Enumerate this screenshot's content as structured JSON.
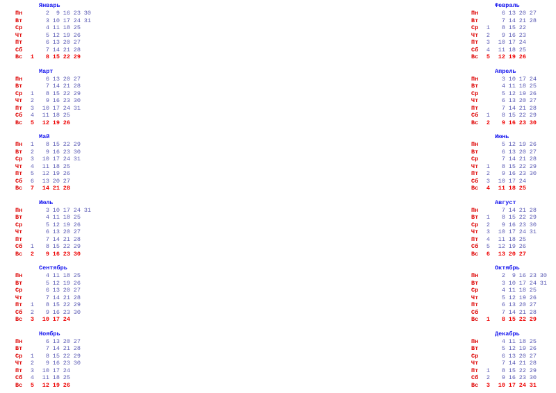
{
  "months": [
    {
      "name": "Январь",
      "rows": [
        {
          "day": "Пн",
          "dates": [
            null,
            2,
            9,
            16,
            23,
            30
          ]
        },
        {
          "day": "Вт",
          "dates": [
            null,
            3,
            10,
            17,
            24,
            31
          ]
        },
        {
          "day": "Ср",
          "dates": [
            null,
            4,
            11,
            18,
            25
          ]
        },
        {
          "day": "Чт",
          "dates": [
            null,
            5,
            12,
            19,
            26
          ]
        },
        {
          "day": "Пт",
          "dates": [
            null,
            6,
            13,
            20,
            27
          ]
        },
        {
          "day": "Сб",
          "dates": [
            null,
            7,
            14,
            21,
            28
          ]
        },
        {
          "day": "Вс",
          "dates": [
            1,
            8,
            15,
            22,
            29
          ]
        }
      ]
    },
    {
      "name": "Февраль",
      "rows": [
        {
          "day": "Пн",
          "dates": [
            null,
            6,
            13,
            20,
            27
          ]
        },
        {
          "day": "Вт",
          "dates": [
            null,
            7,
            14,
            21,
            28
          ]
        },
        {
          "day": "Ср",
          "dates": [
            1,
            8,
            15,
            22
          ]
        },
        {
          "day": "Чт",
          "dates": [
            2,
            9,
            16,
            23
          ]
        },
        {
          "day": "Пт",
          "dates": [
            3,
            10,
            17,
            24
          ]
        },
        {
          "day": "Сб",
          "dates": [
            4,
            11,
            18,
            25
          ]
        },
        {
          "day": "Вс",
          "dates": [
            5,
            12,
            19,
            26
          ]
        }
      ]
    },
    {
      "name": "Март",
      "rows": [
        {
          "day": "Пн",
          "dates": [
            null,
            6,
            13,
            20,
            27
          ]
        },
        {
          "day": "Вт",
          "dates": [
            null,
            7,
            14,
            21,
            28
          ]
        },
        {
          "day": "Ср",
          "dates": [
            1,
            8,
            15,
            22,
            29
          ]
        },
        {
          "day": "Чт",
          "dates": [
            2,
            9,
            16,
            23,
            30
          ]
        },
        {
          "day": "Пт",
          "dates": [
            3,
            10,
            17,
            24,
            31
          ]
        },
        {
          "day": "Сб",
          "dates": [
            4,
            11,
            18,
            25
          ]
        },
        {
          "day": "Вс",
          "dates": [
            5,
            12,
            19,
            26
          ]
        }
      ]
    },
    {
      "name": "Апрель",
      "rows": [
        {
          "day": "Пн",
          "dates": [
            null,
            3,
            10,
            17,
            24
          ]
        },
        {
          "day": "Вт",
          "dates": [
            null,
            4,
            11,
            18,
            25
          ]
        },
        {
          "day": "Ср",
          "dates": [
            null,
            5,
            12,
            19,
            26
          ]
        },
        {
          "day": "Чт",
          "dates": [
            null,
            6,
            13,
            20,
            27
          ]
        },
        {
          "day": "Пт",
          "dates": [
            null,
            7,
            14,
            21,
            28
          ]
        },
        {
          "day": "Сб",
          "dates": [
            1,
            8,
            15,
            22,
            29
          ]
        },
        {
          "day": "Вс",
          "dates": [
            2,
            9,
            16,
            23,
            30
          ]
        }
      ]
    },
    {
      "name": "Май",
      "rows": [
        {
          "day": "Пн",
          "dates": [
            1,
            8,
            15,
            22,
            29
          ]
        },
        {
          "day": "Вт",
          "dates": [
            2,
            9,
            16,
            23,
            30
          ]
        },
        {
          "day": "Ср",
          "dates": [
            3,
            10,
            17,
            24,
            31
          ]
        },
        {
          "day": "Чт",
          "dates": [
            4,
            11,
            18,
            25
          ]
        },
        {
          "day": "Пт",
          "dates": [
            5,
            12,
            19,
            26
          ]
        },
        {
          "day": "Сб",
          "dates": [
            6,
            13,
            20,
            27
          ]
        },
        {
          "day": "Вс",
          "dates": [
            7,
            14,
            21,
            28
          ]
        }
      ]
    },
    {
      "name": "Июнь",
      "rows": [
        {
          "day": "Пн",
          "dates": [
            null,
            5,
            12,
            19,
            26
          ]
        },
        {
          "day": "Вт",
          "dates": [
            null,
            6,
            13,
            20,
            27
          ]
        },
        {
          "day": "Ср",
          "dates": [
            null,
            7,
            14,
            21,
            28
          ]
        },
        {
          "day": "Чт",
          "dates": [
            1,
            8,
            15,
            22,
            29
          ]
        },
        {
          "day": "Пт",
          "dates": [
            2,
            9,
            16,
            23,
            30
          ]
        },
        {
          "day": "Сб",
          "dates": [
            3,
            10,
            17,
            24
          ]
        },
        {
          "day": "Вс",
          "dates": [
            4,
            11,
            18,
            25
          ]
        }
      ]
    },
    {
      "name": "Июль",
      "rows": [
        {
          "day": "Пн",
          "dates": [
            null,
            3,
            10,
            17,
            24,
            31
          ]
        },
        {
          "day": "Вт",
          "dates": [
            null,
            4,
            11,
            18,
            25
          ]
        },
        {
          "day": "Ср",
          "dates": [
            null,
            5,
            12,
            19,
            26
          ]
        },
        {
          "day": "Чт",
          "dates": [
            null,
            6,
            13,
            20,
            27
          ]
        },
        {
          "day": "Пт",
          "dates": [
            null,
            7,
            14,
            21,
            28
          ]
        },
        {
          "day": "Сб",
          "dates": [
            1,
            8,
            15,
            22,
            29
          ]
        },
        {
          "day": "Вс",
          "dates": [
            2,
            9,
            16,
            23,
            30
          ]
        }
      ]
    },
    {
      "name": "Август",
      "rows": [
        {
          "day": "Пн",
          "dates": [
            null,
            7,
            14,
            21,
            28
          ]
        },
        {
          "day": "Вт",
          "dates": [
            1,
            8,
            15,
            22,
            29
          ]
        },
        {
          "day": "Ср",
          "dates": [
            2,
            9,
            16,
            23,
            30
          ]
        },
        {
          "day": "Чт",
          "dates": [
            3,
            10,
            17,
            24,
            31
          ]
        },
        {
          "day": "Пт",
          "dates": [
            4,
            11,
            18,
            25
          ]
        },
        {
          "day": "Сб",
          "dates": [
            5,
            12,
            19,
            26
          ]
        },
        {
          "day": "Вс",
          "dates": [
            6,
            13,
            20,
            27
          ]
        }
      ]
    },
    {
      "name": "Сентябрь",
      "rows": [
        {
          "day": "Пн",
          "dates": [
            null,
            4,
            11,
            18,
            25
          ]
        },
        {
          "day": "Вт",
          "dates": [
            null,
            5,
            12,
            19,
            26
          ]
        },
        {
          "day": "Ср",
          "dates": [
            null,
            6,
            13,
            20,
            27
          ]
        },
        {
          "day": "Чт",
          "dates": [
            null,
            7,
            14,
            21,
            28
          ]
        },
        {
          "day": "Пт",
          "dates": [
            1,
            8,
            15,
            22,
            29
          ]
        },
        {
          "day": "Сб",
          "dates": [
            2,
            9,
            16,
            23,
            30
          ]
        },
        {
          "day": "Вс",
          "dates": [
            3,
            10,
            17,
            24
          ]
        }
      ]
    },
    {
      "name": "Октябрь",
      "rows": [
        {
          "day": "Пн",
          "dates": [
            null,
            2,
            9,
            16,
            23,
            30
          ]
        },
        {
          "day": "Вт",
          "dates": [
            null,
            3,
            10,
            17,
            24,
            31
          ]
        },
        {
          "day": "Ср",
          "dates": [
            null,
            4,
            11,
            18,
            25
          ]
        },
        {
          "day": "Чт",
          "dates": [
            null,
            5,
            12,
            19,
            26
          ]
        },
        {
          "day": "Пт",
          "dates": [
            null,
            6,
            13,
            20,
            27
          ]
        },
        {
          "day": "Сб",
          "dates": [
            null,
            7,
            14,
            21,
            28
          ]
        },
        {
          "day": "Вс",
          "dates": [
            1,
            8,
            15,
            22,
            29
          ]
        }
      ]
    },
    {
      "name": "Ноябрь",
      "rows": [
        {
          "day": "Пн",
          "dates": [
            null,
            6,
            13,
            20,
            27
          ]
        },
        {
          "day": "Вт",
          "dates": [
            null,
            7,
            14,
            21,
            28
          ]
        },
        {
          "day": "Ср",
          "dates": [
            1,
            8,
            15,
            22,
            29
          ]
        },
        {
          "day": "Чт",
          "dates": [
            2,
            9,
            16,
            23,
            30
          ]
        },
        {
          "day": "Пт",
          "dates": [
            3,
            10,
            17,
            24
          ]
        },
        {
          "day": "Сб",
          "dates": [
            4,
            11,
            18,
            25
          ]
        },
        {
          "day": "Вс",
          "dates": [
            5,
            12,
            19,
            26
          ]
        }
      ]
    },
    {
      "name": "Декабрь",
      "rows": [
        {
          "day": "Пн",
          "dates": [
            null,
            4,
            11,
            18,
            25
          ]
        },
        {
          "day": "Вт",
          "dates": [
            null,
            5,
            12,
            19,
            26
          ]
        },
        {
          "day": "Ср",
          "dates": [
            null,
            6,
            13,
            20,
            27
          ]
        },
        {
          "day": "Чт",
          "dates": [
            null,
            7,
            14,
            21,
            28
          ]
        },
        {
          "day": "Пт",
          "dates": [
            1,
            8,
            15,
            22,
            29
          ]
        },
        {
          "day": "Сб",
          "dates": [
            2,
            9,
            16,
            23,
            30
          ]
        },
        {
          "day": "Вс",
          "dates": [
            3,
            10,
            17,
            24,
            31
          ]
        }
      ]
    }
  ]
}
